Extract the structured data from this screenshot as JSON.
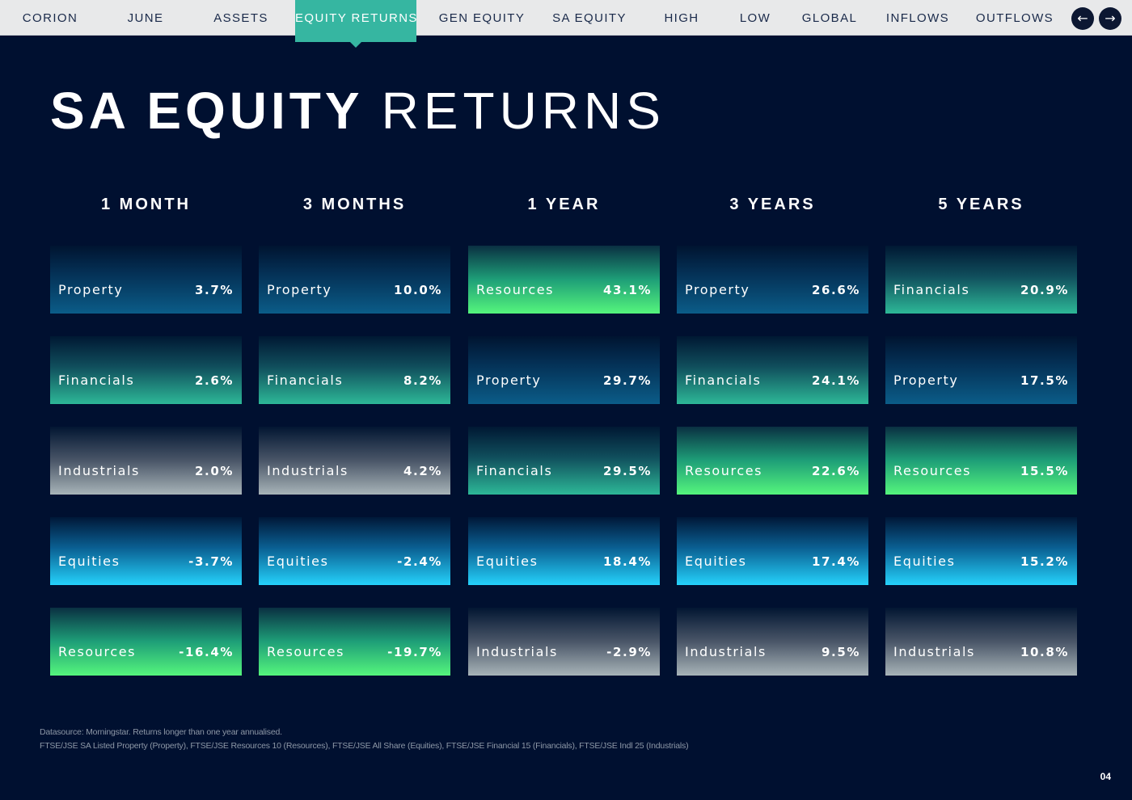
{
  "nav": {
    "items": [
      {
        "label": "CORION"
      },
      {
        "label": "JUNE"
      },
      {
        "label": "ASSETS"
      },
      {
        "label": "EQUITY RETURNS"
      },
      {
        "label": "GEN EQUITY"
      },
      {
        "label": "SA EQUITY"
      },
      {
        "label": "HIGH"
      },
      {
        "label": "LOW"
      },
      {
        "label": "GLOBAL"
      },
      {
        "label": "INFLOWS"
      },
      {
        "label": "OUTFLOWS"
      }
    ],
    "active": "EQUITY RETURNS",
    "prev_label": "←",
    "next_label": "→"
  },
  "page": {
    "title_bold": "SA EQUITY",
    "title_light": "RETURNS",
    "page_number": "04"
  },
  "colors": {
    "background": "#001030",
    "nav_background": "#e8e9ea",
    "nav_active": "#36b6a1",
    "Property": "#0b5c88",
    "Financials": "#2db897",
    "Industrials": "#a8b4b8",
    "Equities": "#25d2fb",
    "Resources": "#55f57c"
  },
  "periods": [
    {
      "label": "1 MONTH",
      "rows": [
        {
          "name": "Property",
          "value": "3.7%"
        },
        {
          "name": "Financials",
          "value": "2.6%"
        },
        {
          "name": "Industrials",
          "value": "2.0%"
        },
        {
          "name": "Equities",
          "value": "-3.7%"
        },
        {
          "name": "Resources",
          "value": "-16.4%"
        }
      ]
    },
    {
      "label": "3 MONTHS",
      "rows": [
        {
          "name": "Property",
          "value": "10.0%"
        },
        {
          "name": "Financials",
          "value": "8.2%"
        },
        {
          "name": "Industrials",
          "value": "4.2%"
        },
        {
          "name": "Equities",
          "value": "-2.4%"
        },
        {
          "name": "Resources",
          "value": "-19.7%"
        }
      ]
    },
    {
      "label": "1 YEAR",
      "rows": [
        {
          "name": "Resources",
          "value": "43.1%"
        },
        {
          "name": "Property",
          "value": "29.7%"
        },
        {
          "name": "Financials",
          "value": "29.5%"
        },
        {
          "name": "Equities",
          "value": "18.4%"
        },
        {
          "name": "Industrials",
          "value": "-2.9%"
        }
      ]
    },
    {
      "label": "3 YEARS",
      "rows": [
        {
          "name": "Property",
          "value": "26.6%"
        },
        {
          "name": "Financials",
          "value": "24.1%"
        },
        {
          "name": "Resources",
          "value": "22.6%"
        },
        {
          "name": "Equities",
          "value": "17.4%"
        },
        {
          "name": "Industrials",
          "value": "9.5%"
        }
      ]
    },
    {
      "label": "5 YEARS",
      "rows": [
        {
          "name": "Financials",
          "value": "20.9%"
        },
        {
          "name": "Property",
          "value": "17.5%"
        },
        {
          "name": "Resources",
          "value": "15.5%"
        },
        {
          "name": "Equities",
          "value": "15.2%"
        },
        {
          "name": "Industrials",
          "value": "10.8%"
        }
      ]
    }
  ],
  "footer": {
    "line1": "Datasource: Morningstar. Returns longer than one year annualised.",
    "line2": "FTSE/JSE SA Listed Property (Property), FTSE/JSE Resources 10 (Resources), FTSE/JSE All Share (Equities), FTSE/JSE Financial 15 (Financials), FTSE/JSE Indl 25 (Industrials)"
  }
}
